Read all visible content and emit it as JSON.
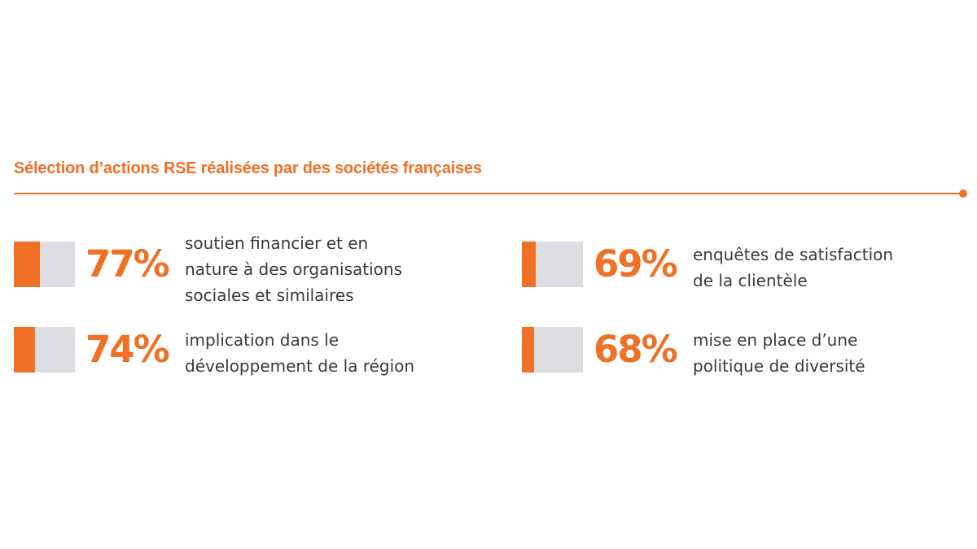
{
  "title": "Sélection d’actions RSE réalisées par des sociétés françaises",
  "colors": {
    "accent": "#f07126",
    "track": "#dcdde1",
    "text": "#3a3a3a"
  },
  "chart_data": {
    "type": "bar",
    "title": "Sélection d’actions RSE réalisées par des sociétés françaises",
    "unit": "%",
    "ylim": [
      0,
      100
    ],
    "items": [
      {
        "value": 77,
        "label": "77%",
        "lines": [
          "soutien financier et en",
          "nature à des organisations",
          "sociales et similaires"
        ]
      },
      {
        "value": 74,
        "label": "74%",
        "lines": [
          "implication dans le",
          "développement de la région"
        ]
      },
      {
        "value": 69,
        "label": "69%",
        "lines": [
          "enquêtes de satisfaction",
          "de la clientèle"
        ]
      },
      {
        "value": 68,
        "label": "68%",
        "lines": [
          "mise en place d’une",
          "politique de diversité"
        ]
      }
    ]
  }
}
